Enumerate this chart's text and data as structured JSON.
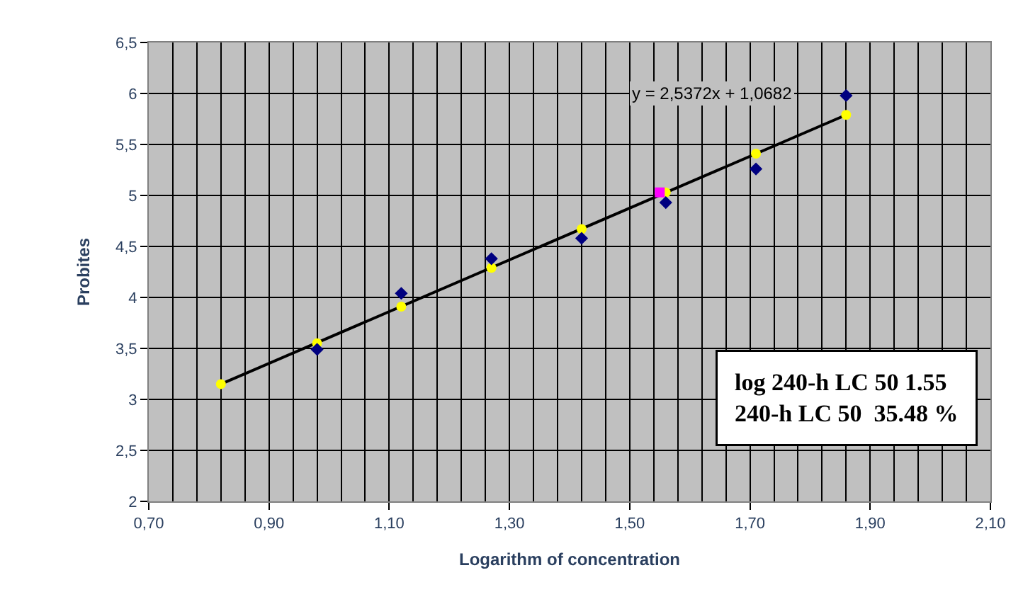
{
  "chart_data": {
    "type": "scatter",
    "xlabel": "Logarithm of concentration",
    "ylabel": "Probites",
    "xlim": [
      0.7,
      2.1
    ],
    "xticks": [
      {
        "value": 0.7,
        "label": "0,70"
      },
      {
        "value": 0.9,
        "label": "0,90"
      },
      {
        "value": 1.1,
        "label": "1,10"
      },
      {
        "value": 1.3,
        "label": "1,30"
      },
      {
        "value": 1.5,
        "label": "1,50"
      },
      {
        "value": 1.7,
        "label": "1,70"
      },
      {
        "value": 1.9,
        "label": "1,90"
      },
      {
        "value": 2.1,
        "label": "2,10"
      }
    ],
    "ylim": [
      2,
      6.5
    ],
    "yticks": [
      2,
      {
        "value": 2.5,
        "label": "2,5"
      },
      3,
      {
        "value": 3.5,
        "label": "3,5"
      },
      4,
      {
        "value": 4.5,
        "label": "4,5"
      },
      5,
      {
        "value": 5.5,
        "label": "5,5"
      },
      6,
      {
        "value": 6.5,
        "label": "6,5"
      }
    ],
    "grid": true,
    "series": [
      {
        "type": "line",
        "color": "#000000",
        "marker": "none",
        "x": [
          0.82,
          1.86
        ],
        "values": [
          3.15,
          5.79
        ]
      },
      {
        "color": "#ffff00",
        "marker": "circle",
        "x": [
          0.82,
          0.98,
          1.12,
          1.27,
          1.42,
          1.56,
          1.71,
          1.86
        ],
        "values": [
          3.15,
          3.55,
          3.91,
          4.29,
          4.67,
          5.03,
          5.41,
          5.79
        ]
      },
      {
        "color": "#000080",
        "marker": "diamond",
        "x": [
          0.98,
          1.12,
          1.27,
          1.42,
          1.56,
          1.71,
          1.86
        ],
        "values": [
          3.49,
          4.04,
          4.38,
          4.58,
          4.93,
          5.26,
          5.98
        ]
      },
      {
        "color": "#ff00ff",
        "marker": "square",
        "x": [
          1.55
        ],
        "values": [
          5.03
        ]
      }
    ],
    "annotations": [
      "y = 2,5372x + 1,0682",
      "log 240-h LC 50 1.55\n240-h LC 50  35.48 %"
    ]
  }
}
